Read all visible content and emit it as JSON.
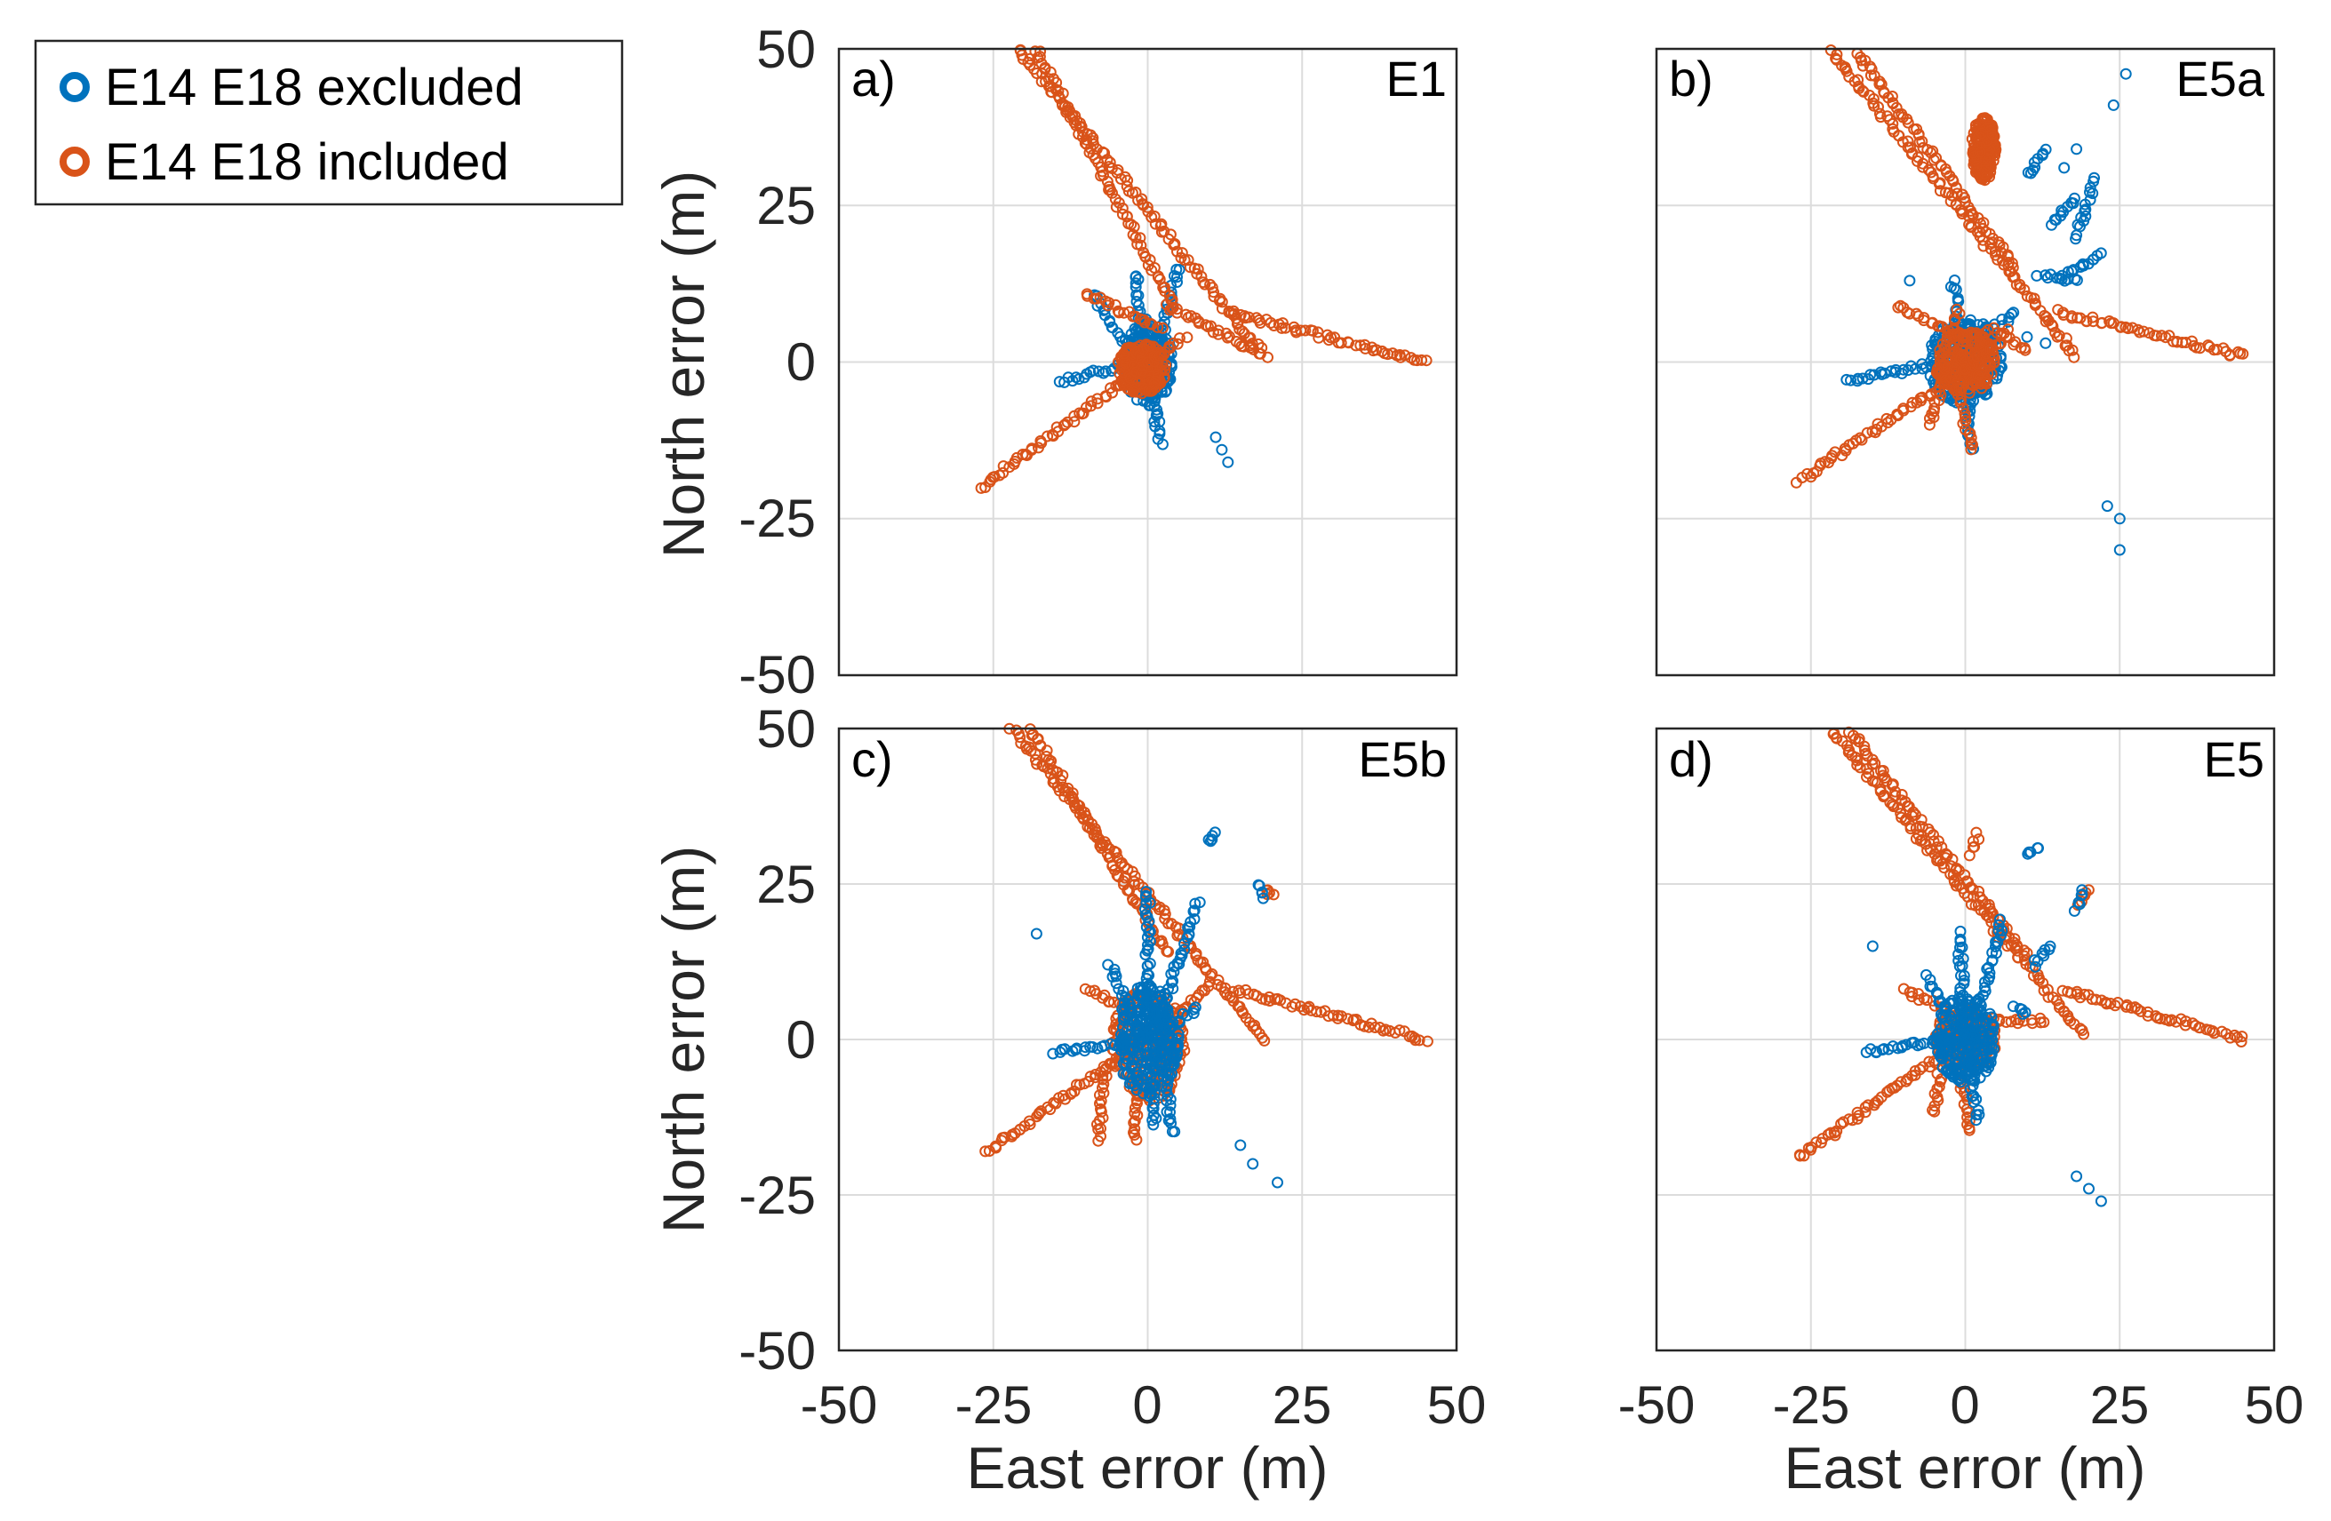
{
  "legend": {
    "entries": [
      {
        "label": "E14 E18 excluded",
        "color": "#0072BD"
      },
      {
        "label": "E14 E18 included",
        "color": "#D95319"
      }
    ]
  },
  "chart_data": [
    {
      "type": "scatter",
      "panel_label": "a)",
      "signal": "E1",
      "xlabel": "",
      "ylabel": "North error (m)",
      "xlim": [
        -50,
        50
      ],
      "ylim": [
        -50,
        50
      ],
      "xticks": [],
      "yticks": [
        "50",
        "25",
        "0",
        "-25",
        "-50"
      ],
      "grid": true,
      "series": [
        {
          "name": "E14 E18 excluded",
          "color": "#0072BD",
          "cluster": {
            "center": [
              0,
              0
            ],
            "rx": 4,
            "ry": 7
          },
          "paths": [
            [
              [
                0,
                0
              ],
              [
                -2,
                14
              ]
            ],
            [
              [
                1,
                0
              ],
              [
                5,
                15
              ]
            ],
            [
              [
                0,
                0
              ],
              [
                2,
                -13
              ]
            ],
            [
              [
                -2,
                0
              ],
              [
                -9,
                11
              ]
            ],
            [
              [
                -1,
                0
              ],
              [
                -14,
                -3
              ]
            ]
          ],
          "points": [
            [
              11,
              -12
            ],
            [
              12,
              -14
            ],
            [
              13,
              -16
            ]
          ]
        },
        {
          "name": "E14 E18 included",
          "color": "#D95319",
          "cluster": {
            "center": [
              -1,
              -1
            ],
            "rx": 4,
            "ry": 4
          },
          "paths": [
            [
              [
                -21,
                50
              ],
              [
                18,
                2
              ]
            ],
            [
              [
                -18,
                50
              ],
              [
                4,
                9
              ]
            ],
            [
              [
                -27,
                -20
              ],
              [
                6,
                4
              ]
            ],
            [
              [
                13,
                8
              ],
              [
                45,
                0
              ]
            ],
            [
              [
                3,
                9
              ],
              [
                19,
                1
              ]
            ],
            [
              [
                -10,
                11
              ],
              [
                2,
                5
              ]
            ]
          ],
          "points": []
        }
      ]
    },
    {
      "type": "scatter",
      "panel_label": "b)",
      "signal": "E5a",
      "xlabel": "",
      "ylabel": "",
      "xlim": [
        -50,
        50
      ],
      "ylim": [
        -50,
        50
      ],
      "xticks": [],
      "yticks": [],
      "grid": true,
      "series": [
        {
          "name": "E14 E18 excluded",
          "color": "#0072BD",
          "cluster": {
            "center": [
              0,
              0
            ],
            "rx": 6,
            "ry": 7
          },
          "paths": [
            [
              [
                0,
                0
              ],
              [
                -2,
                13
              ]
            ],
            [
              [
                0,
                0
              ],
              [
                1,
                -14
              ]
            ],
            [
              [
                -3,
                0
              ],
              [
                -19,
                -3
              ]
            ],
            [
              [
                1,
                2
              ],
              [
                8,
                8
              ]
            ],
            [
              [
                16,
                14
              ],
              [
                22,
                17
              ]
            ],
            [
              [
                12,
                14
              ],
              [
                18,
                13
              ]
            ],
            [
              [
                18,
                20
              ],
              [
                21,
                29
              ]
            ],
            [
              [
                14,
                22
              ],
              [
                18,
                26
              ]
            ],
            [
              [
                10,
                30
              ],
              [
                13,
                34
              ]
            ]
          ],
          "points": [
            [
              26,
              46
            ],
            [
              24,
              41
            ],
            [
              18,
              34
            ],
            [
              16,
              31
            ],
            [
              -9,
              13
            ],
            [
              10,
              4
            ],
            [
              13,
              3
            ],
            [
              23,
              -23
            ],
            [
              25,
              -25
            ],
            [
              25,
              -30
            ]
          ]
        },
        {
          "name": "E14 E18 included",
          "color": "#D95319",
          "cluster": {
            "center": [
              0,
              0
            ],
            "rx": 5,
            "ry": 5
          },
          "paths": [
            [
              [
                -22,
                50
              ],
              [
                18,
                1
              ]
            ],
            [
              [
                -18,
                50
              ],
              [
                8,
                15
              ]
            ],
            [
              [
                -27,
                -19
              ],
              [
                6,
                3
              ]
            ],
            [
              [
                15,
                8
              ],
              [
                45,
                1
              ]
            ],
            [
              [
                6,
                4
              ],
              [
                10,
                2
              ]
            ],
            [
              [
                -1,
                -5
              ],
              [
                1,
                -14
              ]
            ],
            [
              [
                -4,
                -5
              ],
              [
                -6,
                -10
              ]
            ],
            [
              [
                -11,
                9
              ],
              [
                -3,
                5
              ]
            ],
            [
              [
                -1,
                8
              ],
              [
                -3,
                4
              ]
            ],
            [
              [
                3,
                5
              ],
              [
                7,
                5
              ]
            ]
          ],
          "points": []
        },
        {
          "name": "E14 E18 included",
          "color": "#D95319",
          "cluster": {
            "center": [
              3,
              34
            ],
            "rx": 2,
            "ry": 5
          },
          "paths": [],
          "points": []
        }
      ]
    },
    {
      "type": "scatter",
      "panel_label": "c)",
      "signal": "E5b",
      "xlabel": "East error (m)",
      "ylabel": "North error (m)",
      "xlim": [
        -50,
        50
      ],
      "ylim": [
        -50,
        50
      ],
      "xticks": [
        "-50",
        "-25",
        "0",
        "25",
        "50"
      ],
      "yticks": [
        "50",
        "25",
        "0",
        "-25",
        "-50"
      ],
      "grid": true,
      "series": [
        {
          "name": "E14 E18 included",
          "color": "#D95319",
          "cluster": {
            "center": [
              0,
              -1
            ],
            "rx": 6,
            "ry": 9
          },
          "paths": [
            [
              [
                -22,
                50
              ],
              [
                19,
                0
              ]
            ],
            [
              [
                -19,
                50
              ],
              [
                3,
                14
              ]
            ],
            [
              [
                -26,
                -18
              ],
              [
                4,
                3
              ]
            ],
            [
              [
                14,
                8
              ],
              [
                45,
                0
              ]
            ],
            [
              [
                -7,
                -5
              ],
              [
                -8,
                -16
              ]
            ],
            [
              [
                -2,
                -5
              ],
              [
                -2,
                -16
              ]
            ],
            [
              [
                4,
                3
              ],
              [
                10,
                9
              ]
            ],
            [
              [
                19,
                24
              ],
              [
                20,
                23
              ]
            ],
            [
              [
                -10,
                8
              ],
              [
                -3,
                5
              ]
            ]
          ],
          "points": []
        },
        {
          "name": "E14 E18 excluded",
          "color": "#0072BD",
          "cluster": {
            "center": [
              0,
              0
            ],
            "rx": 5,
            "ry": 9
          },
          "paths": [
            [
              [
                0,
                0
              ],
              [
                0,
                24
              ]
            ],
            [
              [
                0,
                0
              ],
              [
                1,
                -14
              ]
            ],
            [
              [
                0,
                0
              ],
              [
                -15,
                -2
              ]
            ],
            [
              [
                1,
                0
              ],
              [
                8,
                22
              ]
            ],
            [
              [
                -1,
                0
              ],
              [
                -6,
                12
              ]
            ],
            [
              [
                2,
                0
              ],
              [
                4,
                -15
              ]
            ],
            [
              [
                2,
                1
              ],
              [
                8,
                5
              ]
            ],
            [
              [
                18,
                25
              ],
              [
                19,
                23
              ]
            ],
            [
              [
                10,
                32
              ],
              [
                11,
                33
              ]
            ]
          ],
          "points": [
            [
              -18,
              17
            ],
            [
              15,
              -17
            ],
            [
              17,
              -20
            ],
            [
              21,
              -23
            ]
          ]
        }
      ]
    },
    {
      "type": "scatter",
      "panel_label": "d)",
      "signal": "E5",
      "xlabel": "East error (m)",
      "ylabel": "",
      "xlim": [
        -50,
        50
      ],
      "ylim": [
        -50,
        50
      ],
      "xticks": [
        "-50",
        "-25",
        "0",
        "25",
        "50"
      ],
      "yticks": [],
      "grid": true,
      "series": [
        {
          "name": "E14 E18 included",
          "color": "#D95319",
          "cluster": {
            "center": [
              0,
              0
            ],
            "rx": 5,
            "ry": 5
          },
          "paths": [
            [
              [
                -22,
                50
              ],
              [
                19,
                1
              ]
            ],
            [
              [
                -19,
                50
              ],
              [
                10,
                13
              ]
            ],
            [
              [
                -27,
                -19
              ],
              [
                4,
                3
              ]
            ],
            [
              [
                16,
                8
              ],
              [
                45,
                0
              ]
            ],
            [
              [
                -1,
                -5
              ],
              [
                1,
                -15
              ]
            ],
            [
              [
                -4,
                -5
              ],
              [
                -5,
                -12
              ]
            ],
            [
              [
                -10,
                8
              ],
              [
                -3,
                5
              ]
            ],
            [
              [
                4,
                3
              ],
              [
                13,
                3
              ]
            ],
            [
              [
                1,
                30
              ],
              [
                2,
                33
              ]
            ],
            [
              [
                18,
                22
              ],
              [
                20,
                24
              ]
            ]
          ],
          "points": []
        },
        {
          "name": "E14 E18 excluded",
          "color": "#0072BD",
          "cluster": {
            "center": [
              0,
              0
            ],
            "rx": 5,
            "ry": 7
          },
          "paths": [
            [
              [
                0,
                0
              ],
              [
                -1,
                17
              ]
            ],
            [
              [
                0,
                0
              ],
              [
                2,
                -13
              ]
            ],
            [
              [
                -2,
                0
              ],
              [
                -16,
                -2
              ]
            ],
            [
              [
                1,
                1
              ],
              [
                6,
                19
              ]
            ],
            [
              [
                -1,
                1
              ],
              [
                -6,
                10
              ]
            ],
            [
              [
                11,
                12
              ],
              [
                14,
                15
              ]
            ],
            [
              [
                18,
                21
              ],
              [
                19,
                24
              ]
            ],
            [
              [
                10,
                30
              ],
              [
                12,
                31
              ]
            ],
            [
              [
                8,
                5
              ],
              [
                10,
                4
              ]
            ]
          ],
          "points": [
            [
              -15,
              15
            ],
            [
              18,
              -22
            ],
            [
              20,
              -24
            ],
            [
              22,
              -26
            ]
          ]
        }
      ]
    }
  ]
}
